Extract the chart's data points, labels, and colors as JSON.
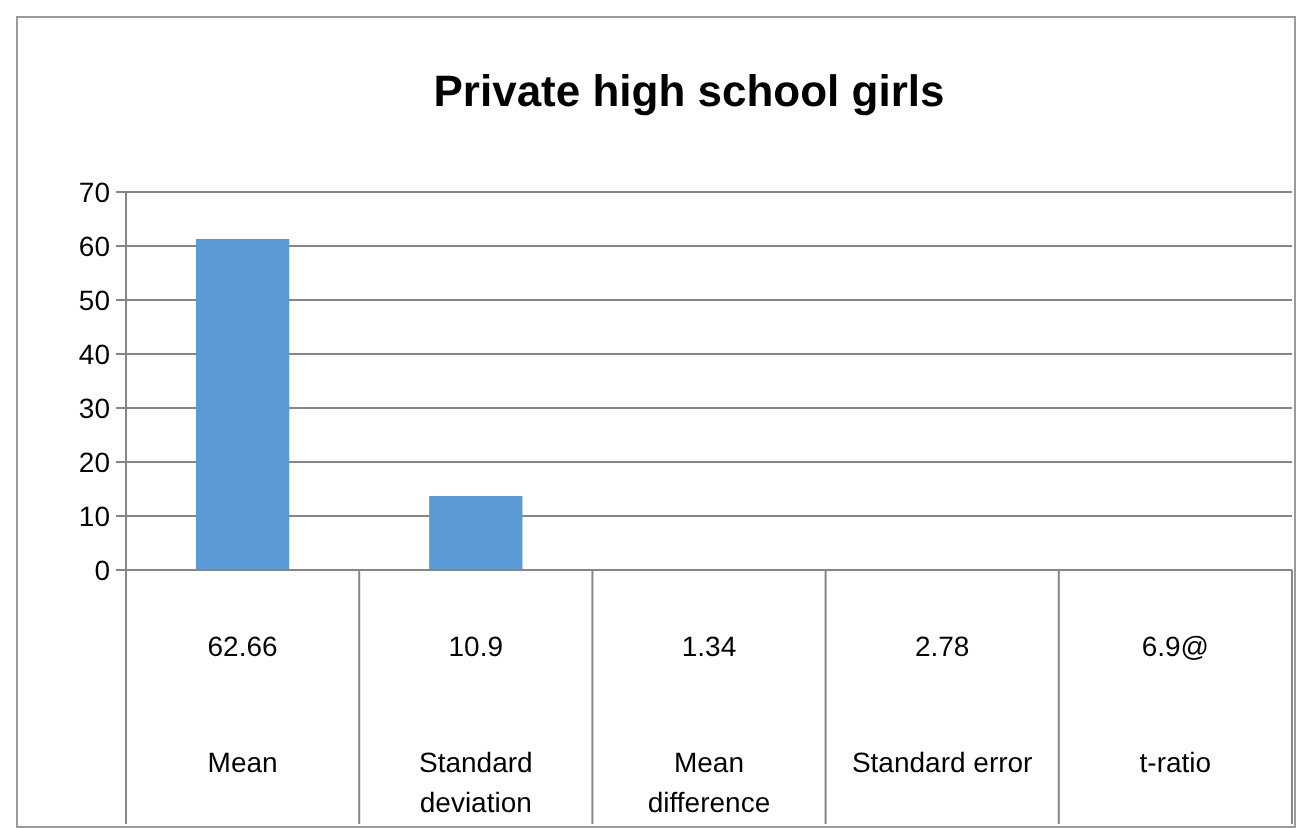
{
  "chart_data": {
    "type": "bar",
    "title": "Private high  school girls",
    "categories": [
      "Mean",
      "Standard deviation",
      "Mean difference",
      "Standard error",
      "t-ratio"
    ],
    "values": [
      61.3,
      13.7,
      null,
      null,
      null
    ],
    "annotations": [
      "62.66",
      "10.9",
      "1.34",
      "2.78",
      "6.9@"
    ],
    "color": "#5b9bd5",
    "ylim": [
      0,
      70
    ],
    "yticks": [
      0,
      10,
      20,
      30,
      40,
      50,
      60,
      70
    ],
    "grid": "y"
  }
}
